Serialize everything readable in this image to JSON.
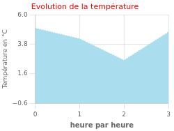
{
  "chart_data": {
    "type": "area",
    "title": "Evolution de la température",
    "xlabel": "heure par heure",
    "ylabel": "Température en °C",
    "x": [
      0,
      1,
      2,
      3
    ],
    "values": [
      5.0,
      4.2,
      2.6,
      4.7
    ],
    "color": "#aaddee",
    "line_style": "dotted",
    "xlim": [
      0,
      3
    ],
    "xticks": [
      0,
      1,
      2,
      3
    ],
    "ylim": [
      -0.6,
      6.0
    ],
    "yticks": [
      {
        "value": -0.6,
        "label": "−0.6"
      },
      1.6,
      3.8,
      {
        "value": 6.0,
        "label": "6.0"
      }
    ],
    "grid": true
  }
}
